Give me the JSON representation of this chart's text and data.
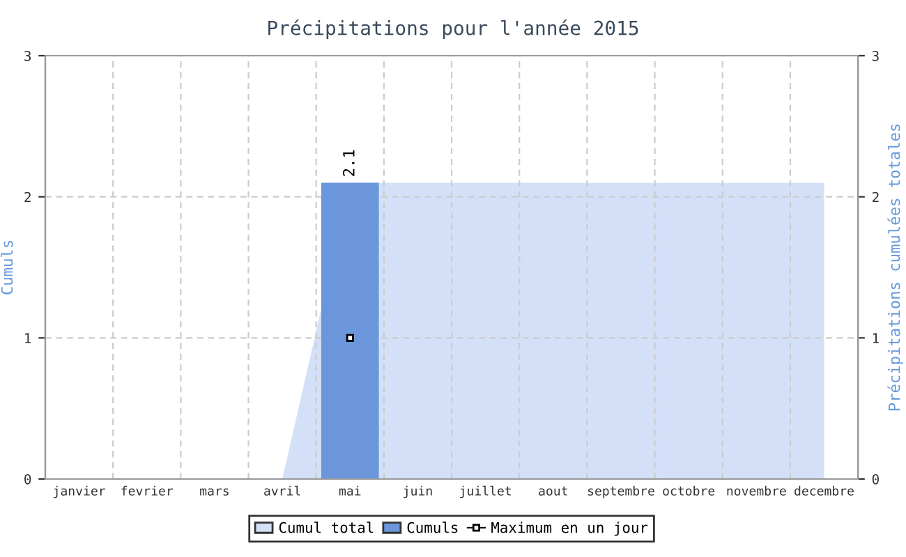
{
  "chart_data": {
    "type": "bar",
    "title": "Précipitations pour l'année 2015",
    "ylabel": "Cumuls",
    "y2label": "Précipitations cumulées totales",
    "categories": [
      "janvier",
      "fevrier",
      "mars",
      "avril",
      "mai",
      "juin",
      "juillet",
      "aout",
      "septembre",
      "octobre",
      "novembre",
      "decembre"
    ],
    "series": [
      {
        "name": "Cumul total",
        "type": "area",
        "axis": "y2",
        "color": "#d3e0f8",
        "values": [
          0,
          0,
          0,
          0,
          2.1,
          2.1,
          2.1,
          2.1,
          2.1,
          2.1,
          2.1,
          2.1
        ]
      },
      {
        "name": "Cumuls",
        "color": "#6b96dc",
        "values": [
          null,
          null,
          null,
          null,
          2.1,
          null,
          null,
          null,
          null,
          null,
          null,
          null
        ],
        "value_labels": [
          null,
          null,
          null,
          null,
          "2.1",
          null,
          null,
          null,
          null,
          null,
          null,
          null
        ]
      },
      {
        "name": "Maximum en un jour",
        "type": "scatter",
        "marker": "square",
        "color": "#ffffff",
        "values": [
          null,
          null,
          null,
          null,
          1,
          null,
          null,
          null,
          null,
          null,
          null,
          null
        ]
      }
    ],
    "ylim": [
      0,
      3
    ],
    "yticks": [
      0,
      1,
      2,
      3
    ],
    "y2lim": [
      0,
      3
    ],
    "y2ticks": [
      0,
      1,
      2,
      3
    ],
    "grid": true,
    "legend": "bottom"
  }
}
